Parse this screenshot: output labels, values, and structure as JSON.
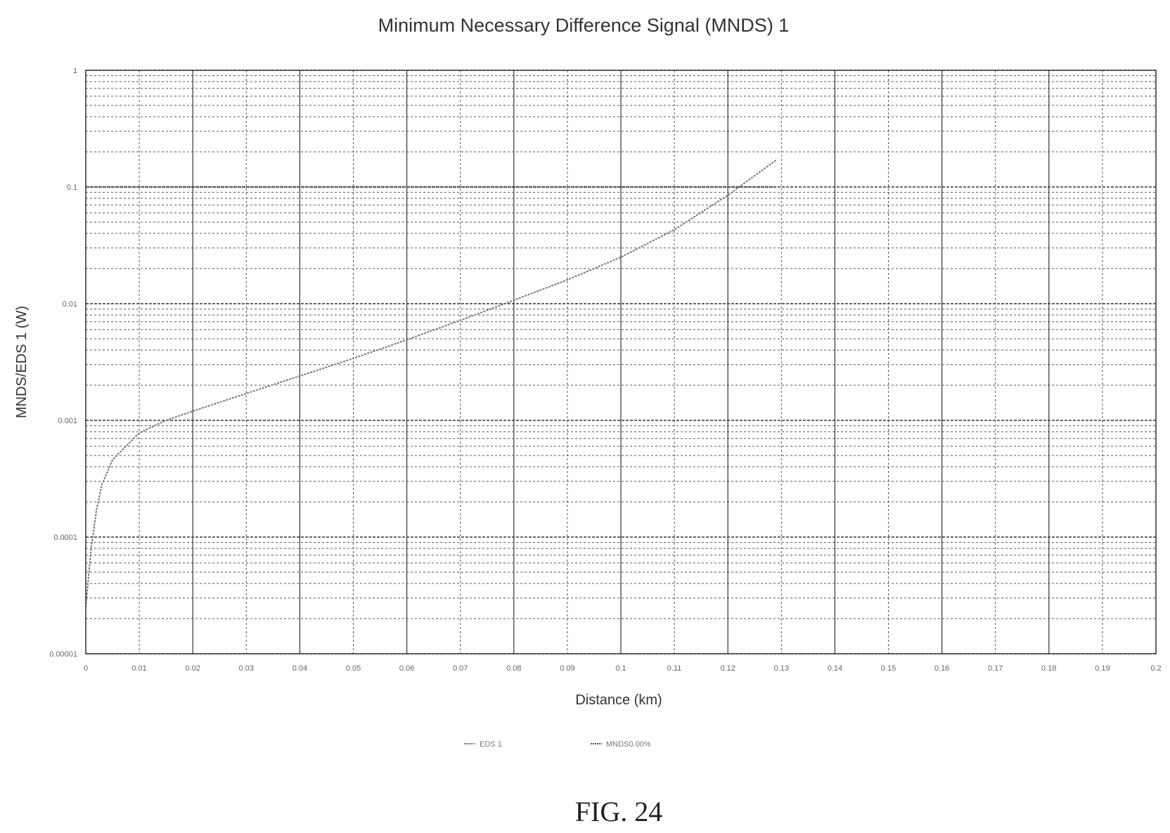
{
  "chart_data": {
    "type": "line",
    "title": "Minimum Necessary Difference Signal (MNDS) 1",
    "xlabel": "Distance (km)",
    "ylabel": "MNDS/EDS 1 (W)",
    "xlim": [
      0,
      0.2
    ],
    "ylim": [
      1e-05,
      1
    ],
    "y_scale": "log",
    "x_ticks": [
      "0",
      "0.01",
      "0.02",
      "0.03",
      "0.04",
      "0.05",
      "0.06",
      "0.07",
      "0.08",
      "0.09",
      "0.1",
      "0.11",
      "0.12",
      "0.13",
      "0.14",
      "0.15",
      "0.16",
      "0.17",
      "0.18",
      "0.19",
      "0.2"
    ],
    "y_ticks": [
      {
        "value": 1,
        "label": "1"
      },
      {
        "value": 0.1,
        "label": "0.1"
      },
      {
        "value": 0.01,
        "label": "0.01"
      },
      {
        "value": 0.001,
        "label": "0.001"
      },
      {
        "value": 0.0001,
        "label": "0.0001"
      },
      {
        "value": 1e-05,
        "label": "0.00001"
      }
    ],
    "grid": true,
    "legend_position": "bottom",
    "series": [
      {
        "name": "EDS 1",
        "color": "#777777",
        "x": [
          0,
          0.001,
          0.002,
          0.003,
          0.005,
          0.01,
          0.015,
          0.02,
          0.03,
          0.04,
          0.05,
          0.06,
          0.07,
          0.08,
          0.09,
          0.1,
          0.11,
          0.12,
          0.129
        ],
        "y": [
          2.5e-05,
          8e-05,
          0.00017,
          0.00028,
          0.00046,
          0.00078,
          0.001,
          0.0012,
          0.0017,
          0.0024,
          0.0034,
          0.0049,
          0.0072,
          0.0107,
          0.016,
          0.025,
          0.043,
          0.085,
          0.17
        ]
      },
      {
        "name": "MNDS0.00%",
        "color": "#555555",
        "x": [
          0,
          0.129
        ],
        "y": [
          0.1,
          0.1
        ]
      }
    ]
  },
  "figure_label": "FIG. 24"
}
